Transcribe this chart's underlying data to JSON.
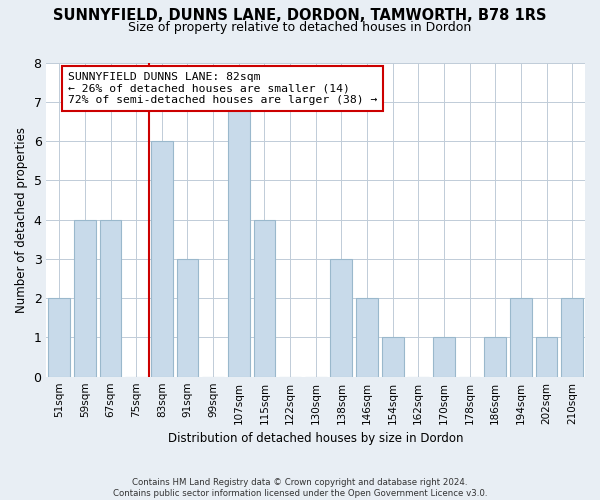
{
  "title": "SUNNYFIELD, DUNNS LANE, DORDON, TAMWORTH, B78 1RS",
  "subtitle": "Size of property relative to detached houses in Dordon",
  "xlabel": "Distribution of detached houses by size in Dordon",
  "ylabel": "Number of detached properties",
  "bar_color": "#c8daea",
  "bar_edgecolor": "#9ab8cc",
  "reference_line_color": "#cc0000",
  "annotation_line1": "SUNNYFIELD DUNNS LANE: 82sqm",
  "annotation_line2": "← 26% of detached houses are smaller (14)",
  "annotation_line3": "72% of semi-detached houses are larger (38) →",
  "annotation_box_color": "white",
  "annotation_box_edgecolor": "#cc0000",
  "categories": [
    "51sqm",
    "59sqm",
    "67sqm",
    "75sqm",
    "83sqm",
    "91sqm",
    "99sqm",
    "107sqm",
    "115sqm",
    "122sqm",
    "130sqm",
    "138sqm",
    "146sqm",
    "154sqm",
    "162sqm",
    "170sqm",
    "178sqm",
    "186sqm",
    "194sqm",
    "202sqm",
    "210sqm"
  ],
  "values": [
    2,
    4,
    4,
    0,
    6,
    3,
    0,
    7,
    4,
    0,
    0,
    3,
    2,
    1,
    0,
    1,
    0,
    1,
    2,
    1,
    2
  ],
  "ylim": [
    0,
    8
  ],
  "yticks": [
    0,
    1,
    2,
    3,
    4,
    5,
    6,
    7,
    8
  ],
  "footer": "Contains HM Land Registry data © Crown copyright and database right 2024.\nContains public sector information licensed under the Open Government Licence v3.0.",
  "background_color": "#e8eef4",
  "plot_background_color": "white",
  "grid_color": "#c0ccd8"
}
